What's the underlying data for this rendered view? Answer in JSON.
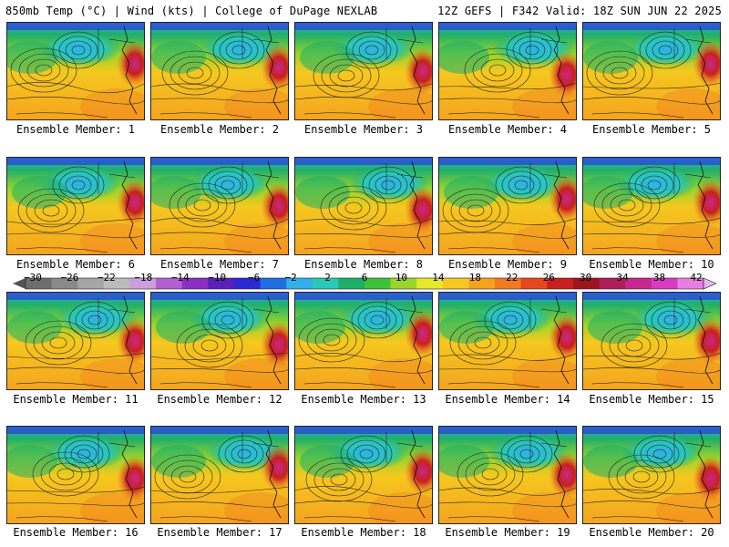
{
  "header": {
    "left": "850mb Temp (°C) | Wind (kts) | College of DuPage NEXLAB",
    "right": "12Z GEFS | F342 Valid: 18Z SUN JUN 22 2025"
  },
  "colorbar": {
    "ticks": [
      "−30",
      "−26",
      "−22",
      "−18",
      "−14",
      "−10",
      "−6",
      "−2",
      "2",
      "6",
      "10",
      "14",
      "18",
      "22",
      "26",
      "30",
      "34",
      "38",
      "42"
    ],
    "colors": [
      "#6e6e6e",
      "#8a8a8a",
      "#a6a6a6",
      "#bcbcbc",
      "#c9a0dc",
      "#b25fd0",
      "#8b2fc2",
      "#5a1fb5",
      "#2a2ad0",
      "#1f6fe0",
      "#2fb0e8",
      "#29c8b8",
      "#1fae6a",
      "#3ec23a",
      "#9ad62a",
      "#e8e82a",
      "#f5c81f",
      "#f5a21f",
      "#f07a1f",
      "#e5481f",
      "#c8201f",
      "#9e141e",
      "#b01e5a",
      "#c8288e",
      "#d83cc0",
      "#e87ee0"
    ]
  },
  "panels": [
    {
      "label": "Ensemble Member: 1"
    },
    {
      "label": "Ensemble Member: 2"
    },
    {
      "label": "Ensemble Member: 3"
    },
    {
      "label": "Ensemble Member: 4"
    },
    {
      "label": "Ensemble Member: 5"
    },
    {
      "label": "Ensemble Member: 6"
    },
    {
      "label": "Ensemble Member: 7"
    },
    {
      "label": "Ensemble Member: 8"
    },
    {
      "label": "Ensemble Member: 9"
    },
    {
      "label": "Ensemble Member: 10"
    },
    {
      "label": "Ensemble Member: 11"
    },
    {
      "label": "Ensemble Member: 12"
    },
    {
      "label": "Ensemble Member: 13"
    },
    {
      "label": "Ensemble Member: 14"
    },
    {
      "label": "Ensemble Member: 15"
    },
    {
      "label": "Ensemble Member: 16"
    },
    {
      "label": "Ensemble Member: 17"
    },
    {
      "label": "Ensemble Member: 18"
    },
    {
      "label": "Ensemble Member: 19"
    },
    {
      "label": "Ensemble Member: 20"
    }
  ]
}
